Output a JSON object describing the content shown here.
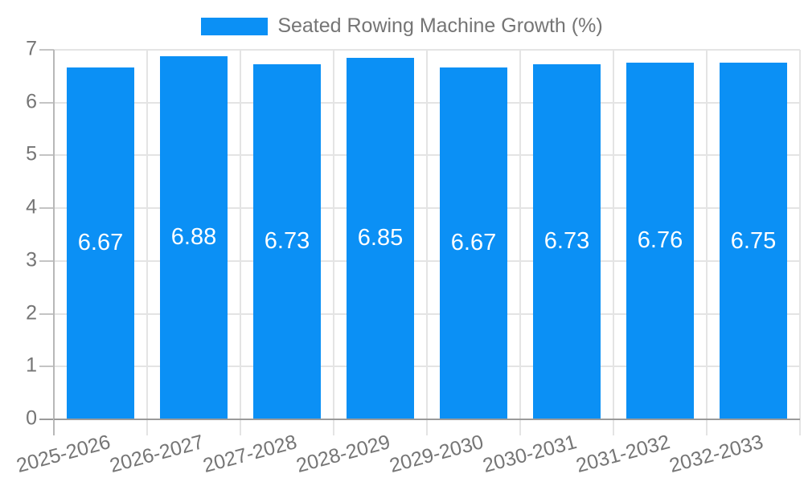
{
  "legend": {
    "label": "Seated Rowing Machine Growth (%)"
  },
  "chart_data": {
    "type": "bar",
    "title": "Seated Rowing Machine Growth (%)",
    "categories": [
      "2025-2026",
      "2026-2027",
      "2027-2028",
      "2028-2029",
      "2029-2030",
      "2030-2031",
      "2031-2032",
      "2032-2033"
    ],
    "values": [
      6.67,
      6.88,
      6.73,
      6.85,
      6.67,
      6.73,
      6.76,
      6.75
    ],
    "value_labels": [
      "6.67",
      "6.88",
      "6.73",
      "6.85",
      "6.67",
      "6.73",
      "6.76",
      "6.75"
    ],
    "xlabel": "",
    "ylabel": "",
    "ylim": [
      0,
      7
    ],
    "yticks": [
      0,
      1,
      2,
      3,
      4,
      5,
      6,
      7
    ],
    "grid": true,
    "legend_position": "top-center",
    "colors": {
      "bar": "#0b90f5",
      "value_label": "#ffffff",
      "axis_text": "#757575",
      "gridline": "#e4e4e4",
      "axis_line": "#b8b8b8",
      "tick": "#c4c4c4",
      "baseline": "#9a9a9a",
      "background": "#ffffff"
    }
  }
}
